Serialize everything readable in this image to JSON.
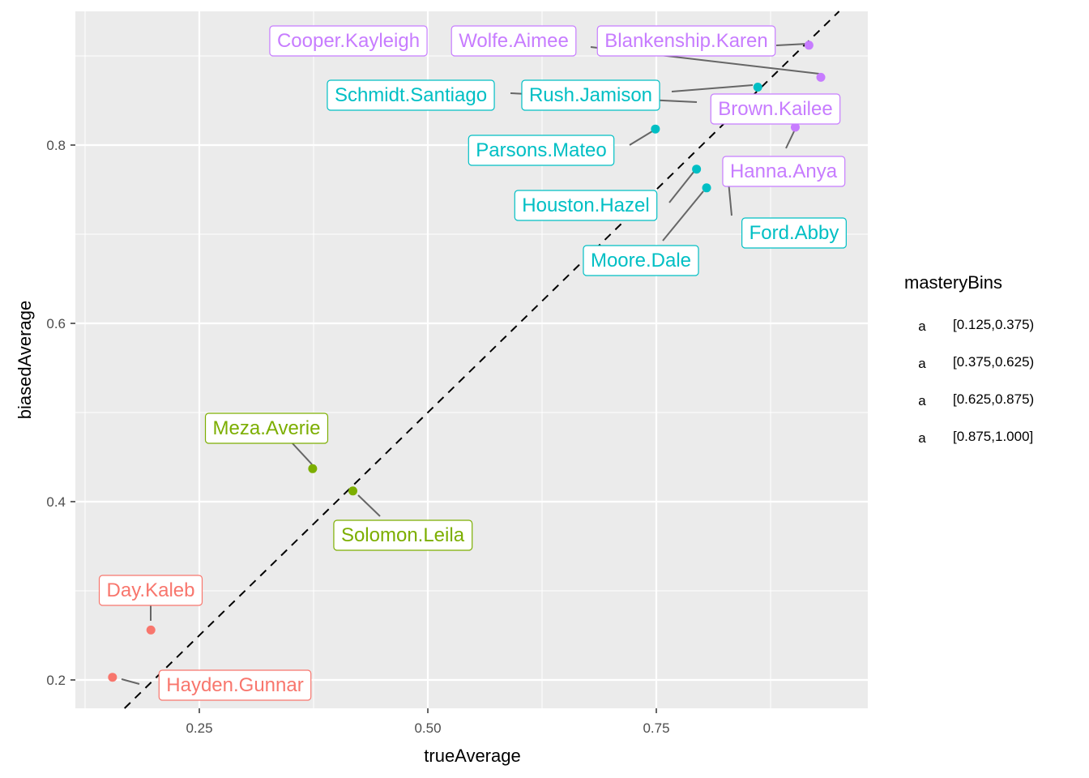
{
  "chart_data": {
    "type": "scatter",
    "xlabel": "trueAverage",
    "ylabel": "biasedAverage",
    "xlim": [
      0.125,
      0.9625
    ],
    "ylim": [
      0.17,
      0.94
    ],
    "x_ticks": [
      0.25,
      0.5,
      0.75
    ],
    "x_tick_labels": [
      "0.25",
      "0.50",
      "0.75"
    ],
    "y_ticks": [
      0.2,
      0.4,
      0.6,
      0.8
    ],
    "y_tick_labels": [
      "0.2",
      "0.4",
      "0.6",
      "0.8"
    ],
    "grid": true,
    "reference_line": {
      "slope": 1,
      "intercept": 0,
      "style": "dashed"
    },
    "legend": {
      "title": "masteryBins",
      "position": "right",
      "key_glyph": "a",
      "entries": [
        {
          "label": "[0.125,0.375)",
          "color": "#F8766D"
        },
        {
          "label": "[0.375,0.625)",
          "color": "#7CAE00"
        },
        {
          "label": "[0.625,0.875)",
          "color": "#00BFC4"
        },
        {
          "label": "[0.875,1.000]",
          "color": "#C77CFF"
        }
      ]
    },
    "points": [
      {
        "name": "Hayden.Gunnar",
        "x": 0.155,
        "y": 0.203,
        "bin": 0
      },
      {
        "name": "Day.Kaleb",
        "x": 0.197,
        "y": 0.256,
        "bin": 0
      },
      {
        "name": "Meza.Averie",
        "x": 0.374,
        "y": 0.437,
        "bin": 1
      },
      {
        "name": "Solomon.Leila",
        "x": 0.418,
        "y": 0.412,
        "bin": 1
      },
      {
        "name": "Parsons.Mateo",
        "x": 0.749,
        "y": 0.818,
        "bin": 2
      },
      {
        "name": "Houston.Hazel",
        "x": 0.794,
        "y": 0.773,
        "bin": 2
      },
      {
        "name": "Moore.Dale",
        "x": 0.805,
        "y": 0.752,
        "bin": 2
      },
      {
        "name": "Schmidt.Santiago",
        "x": 0.861,
        "y": 0.865,
        "bin": 2
      },
      {
        "name": "Rush.Jamison",
        "x": 0.861,
        "y": 0.865,
        "bin": 2
      },
      {
        "name": "Ford.Abby",
        "x": 0.83,
        "y": 0.76,
        "bin": 2
      },
      {
        "name": "Brown.Kailee",
        "x": 0.902,
        "y": 0.82,
        "bin": 3
      },
      {
        "name": "Hanna.Anya",
        "x": 0.902,
        "y": 0.82,
        "bin": 3
      },
      {
        "name": "Blankenship.Karen",
        "x": 0.917,
        "y": 0.912,
        "bin": 3
      },
      {
        "name": "Cooper.Kayleigh",
        "x": 0.917,
        "y": 0.912,
        "bin": 3
      },
      {
        "name": "Wolfe.Aimee",
        "x": 0.93,
        "y": 0.876,
        "bin": 3
      }
    ]
  }
}
